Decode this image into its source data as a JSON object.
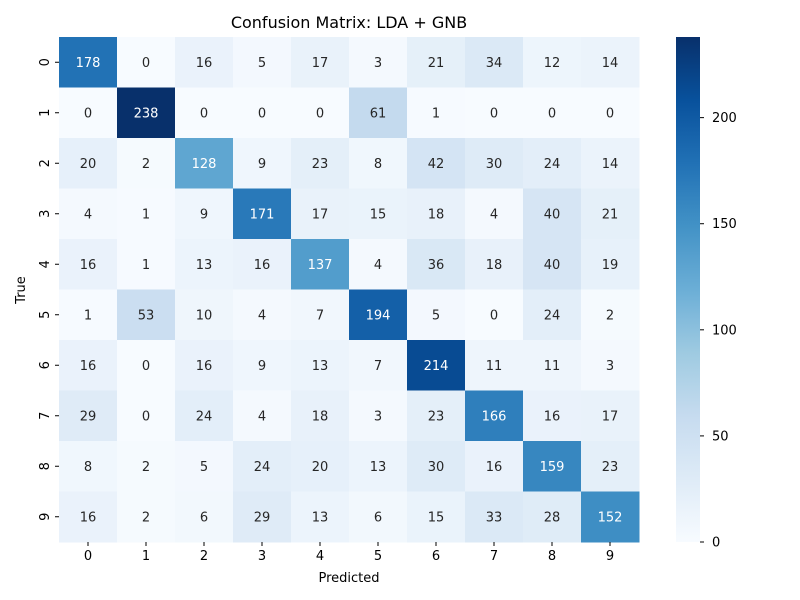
{
  "chart_data": {
    "type": "heatmap",
    "title": "Confusion Matrix: LDA + GNB",
    "xlabel": "Predicted",
    "ylabel": "True",
    "x_categories": [
      "0",
      "1",
      "2",
      "3",
      "4",
      "5",
      "6",
      "7",
      "8",
      "9"
    ],
    "y_categories": [
      "0",
      "1",
      "2",
      "3",
      "4",
      "5",
      "6",
      "7",
      "8",
      "9"
    ],
    "values": [
      [
        178,
        0,
        16,
        5,
        17,
        3,
        21,
        34,
        12,
        14
      ],
      [
        0,
        238,
        0,
        0,
        0,
        61,
        1,
        0,
        0,
        0
      ],
      [
        20,
        2,
        128,
        9,
        23,
        8,
        42,
        30,
        24,
        14
      ],
      [
        4,
        1,
        9,
        171,
        17,
        15,
        18,
        4,
        40,
        21
      ],
      [
        16,
        1,
        13,
        16,
        137,
        4,
        36,
        18,
        40,
        19
      ],
      [
        1,
        53,
        10,
        4,
        7,
        194,
        5,
        0,
        24,
        2
      ],
      [
        16,
        0,
        16,
        9,
        13,
        7,
        214,
        11,
        11,
        3
      ],
      [
        29,
        0,
        24,
        4,
        18,
        3,
        23,
        166,
        16,
        17
      ],
      [
        8,
        2,
        5,
        24,
        20,
        13,
        30,
        16,
        159,
        23
      ],
      [
        16,
        2,
        6,
        29,
        13,
        6,
        15,
        33,
        28,
        152
      ]
    ],
    "colormap": "Blues",
    "vmin": 0,
    "vmax": 238,
    "colorbar_ticks": [
      0,
      50,
      100,
      150,
      200
    ],
    "annotations": true,
    "grid": false
  }
}
